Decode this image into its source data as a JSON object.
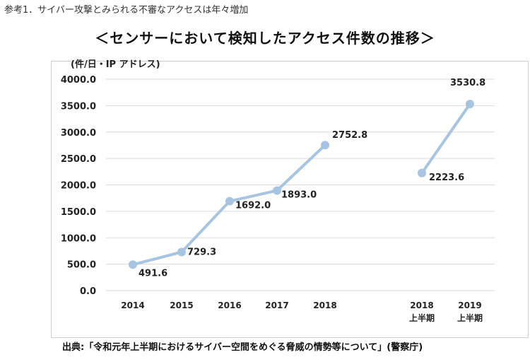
{
  "caption": "参考1．サイバー攻撃とみられる不審なアクセスは年々増加",
  "source": "出典:「令和元年上半期におけるサイバー空間をめぐる脅威の情勢等について」(警察庁)",
  "chart_data": {
    "type": "line",
    "title": "＜センサーにおいて検知したアクセス件数の推移＞",
    "ylabel": "(件/日・IP アドレス)",
    "xlabel": "",
    "ylim": [
      0,
      4000
    ],
    "yticks": [
      "0.0",
      "500.0",
      "1000.0",
      "1500.0",
      "2000.0",
      "2500.0",
      "3000.0",
      "3500.0",
      "4000.0"
    ],
    "grid": true,
    "color": "#a7c4e0",
    "series": [
      {
        "categories": [
          "2014",
          "2015",
          "2016",
          "2017",
          "2018"
        ],
        "values": [
          491.6,
          729.3,
          1692.0,
          1893.0,
          2752.8
        ],
        "labels": [
          "491.6",
          "729.3",
          "1692.0",
          "1893.0",
          "2752.8"
        ]
      },
      {
        "categories": [
          "2018\n上半期",
          "2019\n上半期"
        ],
        "values": [
          2223.6,
          3530.8
        ],
        "labels": [
          "2223.6",
          "3530.8"
        ]
      }
    ]
  }
}
